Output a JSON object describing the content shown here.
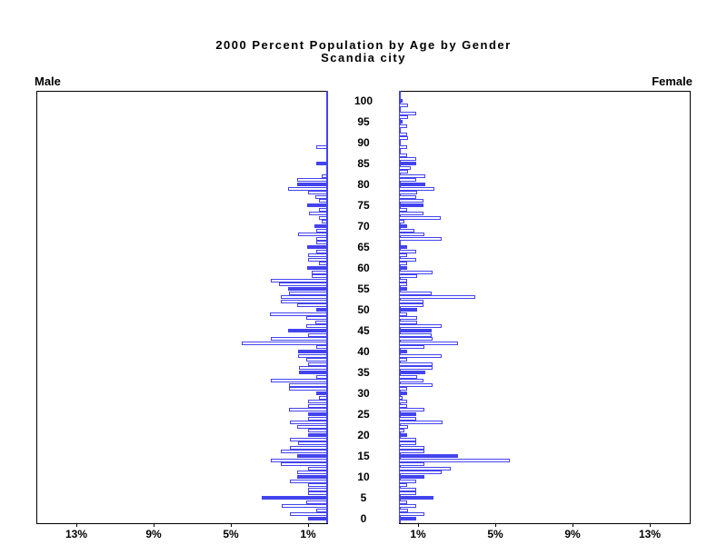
{
  "header": {
    "title": "2000 Percent Population by Age by Gender",
    "subtitle": "Scandia city"
  },
  "panels": {
    "left_label": "Male",
    "right_label": "Female"
  },
  "chart_data": {
    "type": "bar",
    "variant": "population-pyramid",
    "title": "2000 Percent Population by Age by Gender",
    "subtitle": "Scandia city",
    "orientation": "horizontal back-to-back",
    "unit": "percent of population",
    "age_min": 0,
    "age_max": 100,
    "age_tick_interval": 5,
    "age_tick_labels": [
      "0",
      "5",
      "10",
      "15",
      "20",
      "25",
      "30",
      "35",
      "40",
      "45",
      "50",
      "55",
      "60",
      "65",
      "70",
      "75",
      "80",
      "85",
      "90",
      "95",
      "100"
    ],
    "highlight_every_5_years": true,
    "x_axis": {
      "max_percent": 15,
      "male_tick_values": [
        13,
        9,
        5,
        1
      ],
      "male_tick_labels": [
        "13%",
        "9%",
        "5%",
        "1%"
      ],
      "female_tick_values": [
        1,
        5,
        9,
        13
      ],
      "female_tick_labels": [
        "1%",
        "5%",
        "9%",
        "13%"
      ]
    },
    "legend": "none",
    "grid": "off",
    "series": [
      {
        "name": "Male",
        "side": "left",
        "values_by_age": [
          0.97,
          1.95,
          0.55,
          2.37,
          1.06,
          3.39,
          0.97,
          0.97,
          0.97,
          1.95,
          1.53,
          1.53,
          0.97,
          2.4,
          2.9,
          1.53,
          2.4,
          1.95,
          1.5,
          1.95,
          0.97,
          0.97,
          1.53,
          1.95,
          0.97,
          0.97,
          1.96,
          0.97,
          0.97,
          0.44,
          0.55,
          1.96,
          1.96,
          2.9,
          0.55,
          1.44,
          1.44,
          0.97,
          1.1,
          1.49,
          1.49,
          0.55,
          4.42,
          2.9,
          0.97,
          2.0,
          1.07,
          0.63,
          1.07,
          2.98,
          0.55,
          1.54,
          2.38,
          2.38,
          1.96,
          2.04,
          2.48,
          2.9,
          0.78,
          0.78,
          1.02,
          0.44,
          0.97,
          0.97,
          0.55,
          1.02,
          0.55,
          0.55,
          1.49,
          0.55,
          0.67,
          0.3,
          0.44,
          0.94,
          0.44,
          1.02,
          0.44,
          0.6,
          1.0,
          2.0,
          1.55,
          1.55,
          0.3,
          0.0,
          0.0,
          0.55,
          0.0,
          0.0,
          0.0,
          0.55,
          0.0,
          0.0,
          0.0,
          0.0,
          0.0,
          0.0,
          0.0,
          0.0,
          0.0,
          0.0,
          0.0
        ]
      },
      {
        "name": "Female",
        "side": "right",
        "values_by_age": [
          0.91,
          1.3,
          0.47,
          0.91,
          0.44,
          1.77,
          0.9,
          0.9,
          0.44,
          0.9,
          1.3,
          2.2,
          2.67,
          1.3,
          5.74,
          3.07,
          1.3,
          1.3,
          0.88,
          0.88,
          0.44,
          0.3,
          0.47,
          2.24,
          0.91,
          0.91,
          1.34,
          0.44,
          0.44,
          0.2,
          0.44,
          0.44,
          1.76,
          1.29,
          0.93,
          1.37,
          1.76,
          1.76,
          0.44,
          2.23,
          0.4,
          1.34,
          3.05,
          1.76,
          1.71,
          1.71,
          2.23,
          0.93,
          0.93,
          0.44,
          0.95,
          1.29,
          1.29,
          3.94,
          1.71,
          0.4,
          0.44,
          0.44,
          0.93,
          1.76,
          0.4,
          0.44,
          0.9,
          0.44,
          0.88,
          0.4,
          0.0,
          2.23,
          1.34,
          0.78,
          0.4,
          0.28,
          2.18,
          1.29,
          0.44,
          1.29,
          1.29,
          0.9,
          0.93,
          1.82,
          1.35,
          0.91,
          1.35,
          0.47,
          0.63,
          0.91,
          0.91,
          0.4,
          0.0,
          0.44,
          0.0,
          0.47,
          0.44,
          0.0,
          0.44,
          0.2,
          0.45,
          0.9,
          0.0,
          0.45,
          0.2
        ]
      }
    ],
    "colors": {
      "bar_highlight_fill": "#4343EF",
      "bar_outline": "#4343EF",
      "bar_default_fill": "#FFFFFF",
      "axis_line": "#000000",
      "baseline_axis": "#4343EF"
    }
  }
}
